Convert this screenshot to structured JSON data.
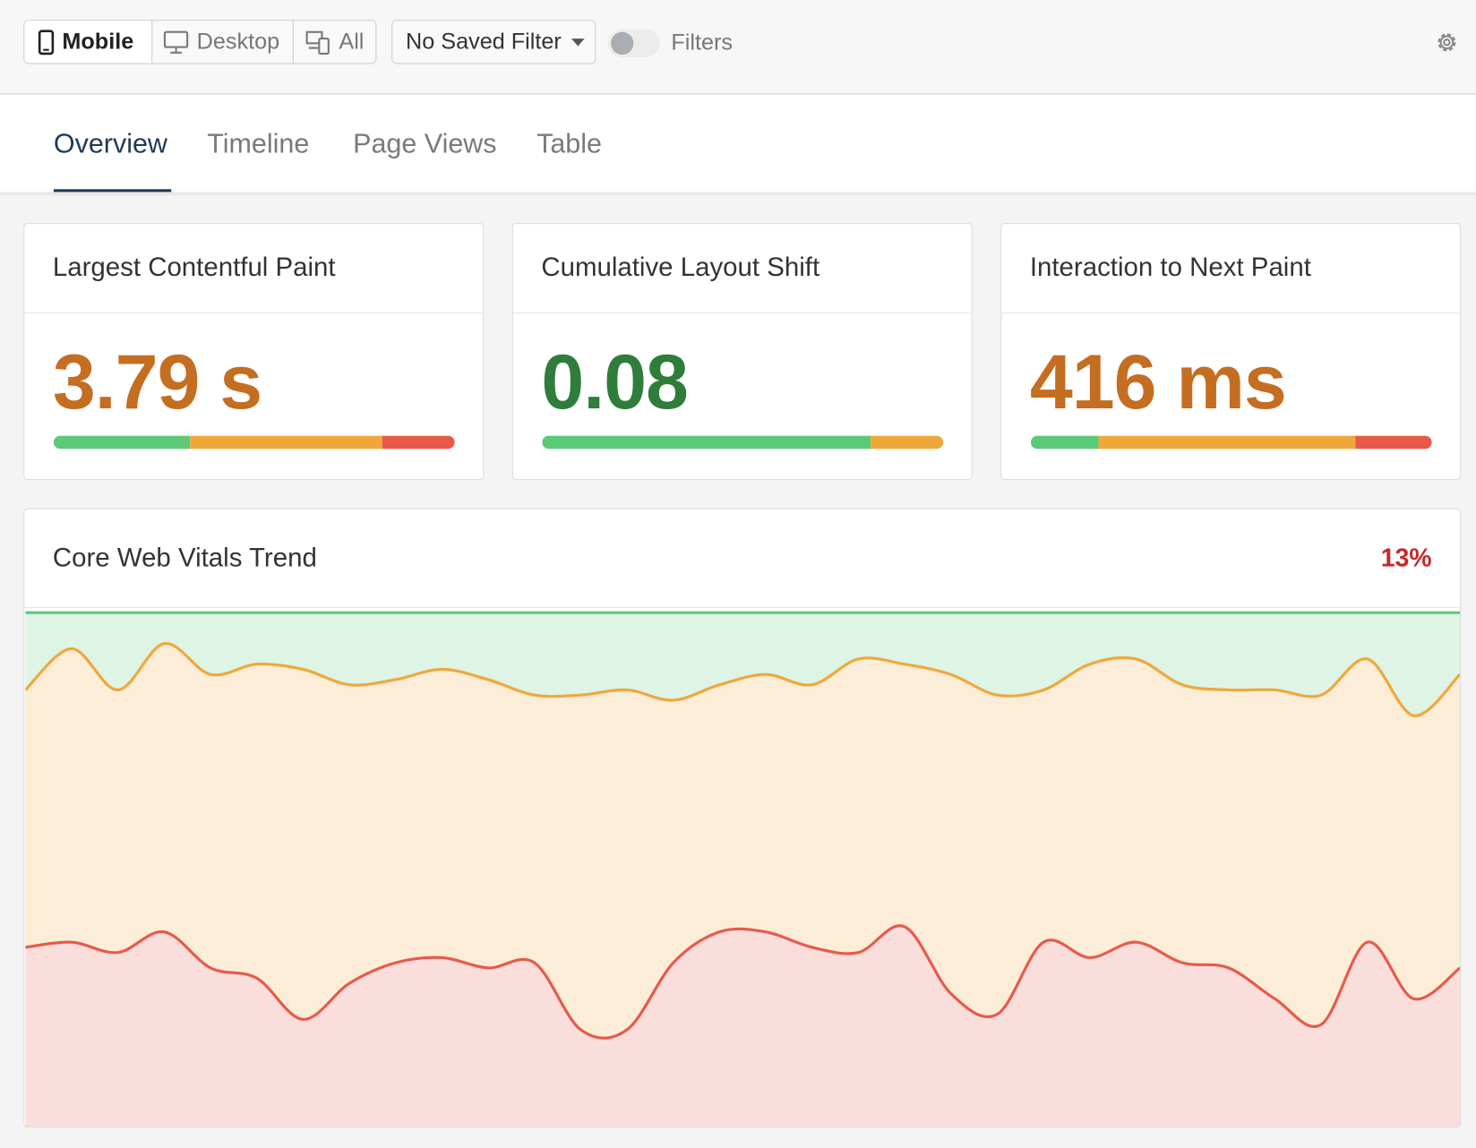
{
  "toolbar": {
    "devices": [
      "Mobile",
      "Desktop",
      "All"
    ],
    "saved_filter": "No Saved Filter",
    "filters_label": "Filters"
  },
  "tabs": [
    "Overview",
    "Timeline",
    "Page Views",
    "Table"
  ],
  "segment_colors": [
    "#5cc977",
    "#f0a73a",
    "#e8594a"
  ],
  "cards": [
    {
      "title": "Largest Contentful Paint",
      "value": "3.79 s",
      "color": "#c46e22",
      "segments": [
        34,
        48,
        18
      ]
    },
    {
      "title": "Cumulative Layout Shift",
      "value": "0.08",
      "color": "#2f7d3a",
      "segments": [
        82,
        18,
        0
      ]
    },
    {
      "title": "Interaction to Next Paint",
      "value": "416 ms",
      "color": "#c46e22",
      "segments": [
        17,
        64,
        19
      ]
    }
  ],
  "trend": {
    "title": "Core Web Vitals Trend",
    "change": "13%",
    "change_color": "#c62828",
    "chart_data": {
      "type": "area",
      "stacked": true,
      "ylim": [
        0,
        100
      ],
      "series": [
        {
          "color": "#e8594a",
          "values": [
            35,
            36,
            34,
            38,
            31,
            29,
            21,
            28,
            32,
            33,
            31,
            32,
            19,
            19,
            32,
            38,
            38,
            35,
            34,
            39,
            26,
            22,
            36,
            33,
            36,
            32,
            31,
            25,
            20,
            36,
            25,
            31
          ]
        },
        {
          "color": "#f0a73a",
          "values": [
            50,
            57,
            51,
            56,
            57,
            61,
            68,
            58,
            55,
            56,
            56,
            52,
            65,
            66,
            51,
            48,
            50,
            51,
            57,
            51,
            62,
            62,
            49,
            57,
            55,
            54,
            54,
            60,
            64,
            55,
            55,
            57
          ]
        },
        {
          "color": "#5cc977",
          "values": [
            15,
            7,
            15,
            6,
            12,
            10,
            11,
            14,
            13,
            11,
            13,
            16,
            16,
            15,
            17,
            14,
            12,
            14,
            9,
            10,
            12,
            16,
            15,
            10,
            9,
            14,
            15,
            15,
            16,
            9,
            20,
            12
          ]
        }
      ]
    }
  }
}
